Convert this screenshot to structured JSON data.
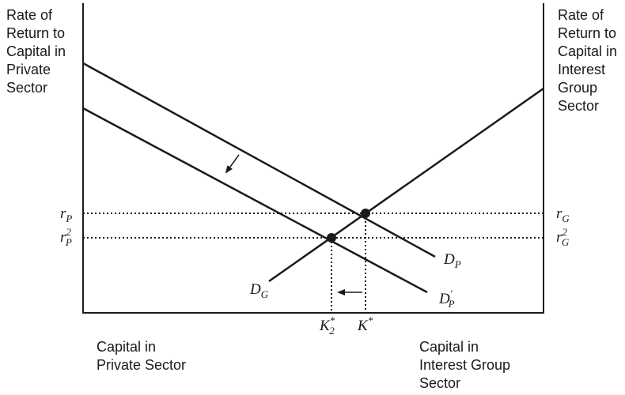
{
  "left_axis_title": "Rate of\nReturn to\nCapital in\nPrivate\nSector",
  "right_axis_title": "Rate of\nReturn to\nCapital in\nInterest\nGroup\nSector",
  "bottom_left_label": "Capital in\nPrivate Sector",
  "bottom_right_label": "Capital in\nInterest Group\nSector",
  "curves": {
    "dp": {
      "base": "D",
      "sub": "P",
      "sup": ""
    },
    "dp_shifted": {
      "base": "D",
      "sub": "P",
      "sup": "′"
    },
    "dg": {
      "base": "D",
      "sub": "G",
      "sup": ""
    }
  },
  "rates": {
    "rp": {
      "base": "r",
      "sub": "P",
      "sup": ""
    },
    "rp2": {
      "base": "r",
      "sub": "P",
      "sup": "2"
    },
    "rg": {
      "base": "r",
      "sub": "G",
      "sup": ""
    },
    "rg2": {
      "base": "r",
      "sub": "G",
      "sup": "2"
    }
  },
  "capital": {
    "k2": {
      "base": "K",
      "sub": "2",
      "sup": "*"
    },
    "k": {
      "base": "K",
      "sub": "",
      "sup": "*"
    }
  },
  "colors": {
    "ink": "#1a1a1a",
    "background": "#ffffff"
  }
}
